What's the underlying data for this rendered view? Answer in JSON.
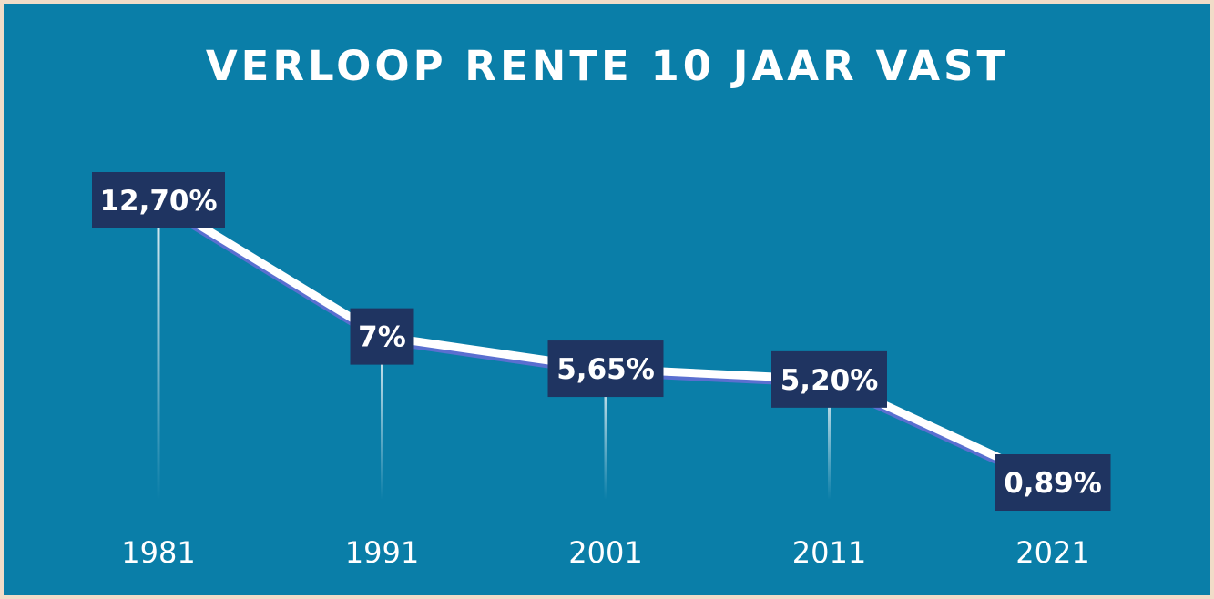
{
  "chart_data": {
    "type": "line",
    "title": "VERLOOP RENTE 10 JAAR VAST",
    "xlabel": "",
    "ylabel": "",
    "categories": [
      "1981",
      "1991",
      "2001",
      "2011",
      "2021"
    ],
    "series": [
      {
        "values": [
          12.7,
          7,
          5.65,
          5.2,
          0.89
        ],
        "labels": [
          "12,70%",
          "7%",
          "5,65%",
          "5,20%",
          "0,89%"
        ]
      }
    ],
    "ylim": [
      0,
      14
    ],
    "grid": false,
    "legend": "none"
  },
  "colors": {
    "background": "#0a7ea8",
    "border": "#f1dcc8",
    "line": "#ffffff",
    "line_shadow": "#5a6fd0",
    "label_box": "#1f3461"
  }
}
